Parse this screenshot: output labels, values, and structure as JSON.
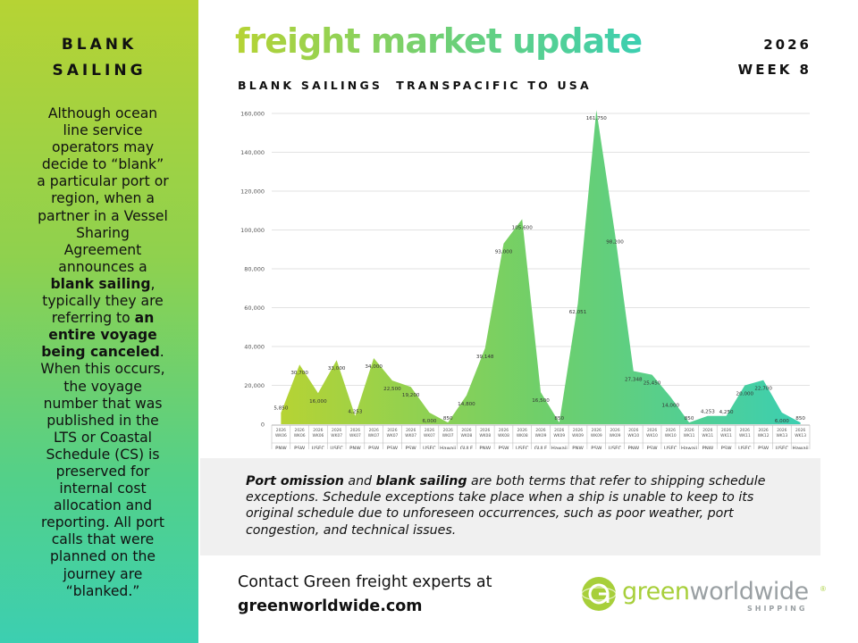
{
  "sidebar": {
    "title_line1": "BLANK",
    "title_line2": "SAILING",
    "body_part1": "Although ocean line service operators may decide to “blank” a particular port or region, when a partner in a Vessel Sharing Agreement announces a ",
    "body_bold1": "blank sailing",
    "body_part2": ", typically they are referring to ",
    "body_bold2": "an entire voyage being canceled",
    "body_part3": ". When this occurs, the voyage number that was published in the LTS or Coastal Schedule (CS) is preserved for internal cost allocation and reporting. All port calls that were planned on the journey are “blanked.”"
  },
  "header": {
    "title": "freight market update",
    "year": "2026",
    "week": "WEEK 8",
    "subtitle": "BLANK SAILINGS  TRANSPACIFIC TO USA"
  },
  "chart_data": {
    "type": "area",
    "title": "BLANK SAILINGS  TRANSPACIFIC TO USA",
    "xlabel": "",
    "ylabel": "",
    "ylim": [
      0,
      160000
    ],
    "yticks": [
      "0",
      "20,000",
      "40,000",
      "60,000",
      "80,000",
      "100,000",
      "120,000",
      "140,000",
      "160,000"
    ],
    "grid": true,
    "legend": "none",
    "colors": {
      "start": "#b6d334",
      "mid": "#6fcf6a",
      "end": "#3ccfb1",
      "grid": "#d9d9d9"
    },
    "categories": [
      {
        "year": "2026",
        "week": "WK06",
        "region": "PNW"
      },
      {
        "year": "2026",
        "week": "WK06",
        "region": "PSW"
      },
      {
        "year": "2026",
        "week": "WK06",
        "region": "USEC"
      },
      {
        "year": "2026",
        "week": "WK07",
        "region": "USEC"
      },
      {
        "year": "2026",
        "week": "WK07",
        "region": "PNW"
      },
      {
        "year": "2026",
        "week": "WK07",
        "region": "PSW"
      },
      {
        "year": "2026",
        "week": "WK07",
        "region": "PSW"
      },
      {
        "year": "2026",
        "week": "WK07",
        "region": "PSW"
      },
      {
        "year": "2026",
        "week": "WK07",
        "region": "USEC"
      },
      {
        "year": "2026",
        "week": "WK07",
        "region": "Hawaii"
      },
      {
        "year": "2026",
        "week": "WK08",
        "region": "GULF"
      },
      {
        "year": "2026",
        "week": "WK08",
        "region": "PNW"
      },
      {
        "year": "2026",
        "week": "WK08",
        "region": "PSW"
      },
      {
        "year": "2026",
        "week": "WK08",
        "region": "USEC"
      },
      {
        "year": "2026",
        "week": "WK09",
        "region": "GULF"
      },
      {
        "year": "2026",
        "week": "WK09",
        "region": "Hawaii"
      },
      {
        "year": "2026",
        "week": "WK09",
        "region": "PNW"
      },
      {
        "year": "2026",
        "week": "WK09",
        "region": "PSW"
      },
      {
        "year": "2026",
        "week": "WK09",
        "region": "USEC"
      },
      {
        "year": "2026",
        "week": "WK10",
        "region": "PNW"
      },
      {
        "year": "2026",
        "week": "WK10",
        "region": "PSW"
      },
      {
        "year": "2026",
        "week": "WK10",
        "region": "USEC"
      },
      {
        "year": "2026",
        "week": "WK11",
        "region": "Hawaii"
      },
      {
        "year": "2026",
        "week": "WK11",
        "region": "PNW"
      },
      {
        "year": "2026",
        "week": "WK11",
        "region": "PSW"
      },
      {
        "year": "2026",
        "week": "WK11",
        "region": "USEC"
      },
      {
        "year": "2026",
        "week": "WK12",
        "region": "PSW"
      },
      {
        "year": "2026",
        "week": "WK13",
        "region": "USEC"
      },
      {
        "year": "2026",
        "week": "WK13",
        "region": "Hawaii"
      }
    ],
    "values": [
      5850,
      30700,
      16000,
      33000,
      4253,
      34000,
      22500,
      19200,
      6000,
      850,
      14800,
      39148,
      93000,
      105600,
      16500,
      850,
      62051,
      161750,
      98200,
      27348,
      25450,
      14000,
      850,
      4253,
      4250,
      20000,
      22700,
      6000,
      850
    ],
    "value_labels": [
      "5,850",
      "30,700",
      "16,000",
      "33,000",
      "4,253",
      "34,000",
      "22,500",
      "19,200",
      "6,000",
      "850",
      "14,800",
      "39,148",
      "93,000",
      "105,600",
      "16,500",
      "850",
      "62,051",
      "161,750",
      "98,200",
      "27,348",
      "25,450",
      "14,000",
      "850",
      "4,253",
      "4,250",
      "20,000",
      "22,700",
      "6,000",
      "850"
    ]
  },
  "note": {
    "bold1": "Port omission",
    "text1": " and ",
    "bold2": "blank sailing",
    "text2": " are both terms that refer to shipping schedule exceptions. Schedule exceptions take place when a ship is unable to keep to its original schedule due to unforeseen occurrences, such as poor weather, port congestion, and technical issues."
  },
  "footer": {
    "contact_line": "Contact Green freight experts at",
    "contact_url": "greenworldwide.com",
    "logo_word1": "green",
    "logo_word2": "worldwide",
    "logo_sub": "SHIPPING",
    "logo_reg": "®"
  }
}
